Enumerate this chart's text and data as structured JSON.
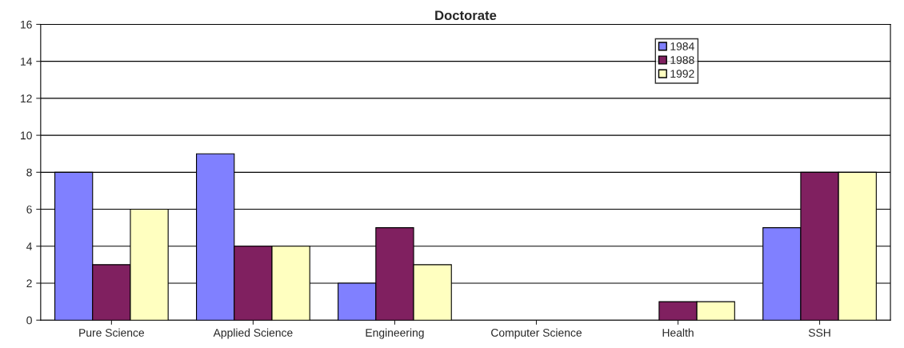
{
  "chart_data": {
    "type": "bar",
    "title": "Doctorate",
    "categories": [
      "Pure Science",
      "Applied Science",
      "Engineering",
      "Computer Science",
      "Health",
      "SSH"
    ],
    "series": [
      {
        "name": "1984",
        "color": "#8080ff",
        "values": [
          8,
          9,
          2,
          0,
          0,
          5
        ]
      },
      {
        "name": "1988",
        "color": "#802060",
        "values": [
          3,
          4,
          5,
          0,
          1,
          8
        ]
      },
      {
        "name": "1992",
        "color": "#ffffc0",
        "values": [
          6,
          4,
          3,
          0,
          1,
          8
        ]
      }
    ],
    "ylim": [
      0,
      16
    ],
    "yticks": [
      0,
      2,
      4,
      6,
      8,
      10,
      12,
      14,
      16
    ],
    "grid": "y",
    "legend": "top right"
  }
}
